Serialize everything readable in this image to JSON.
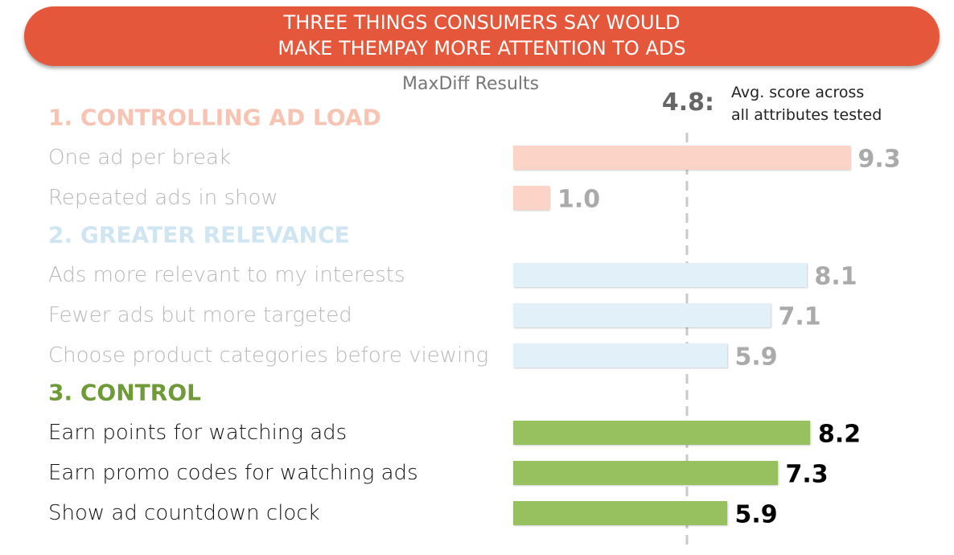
{
  "chart_data": {
    "type": "bar",
    "orientation": "horizontal",
    "title": [
      "THREE THINGS CONSUMERS SAY WOULD",
      "MAKE THEMPAY MORE ATTENTION TO ADS"
    ],
    "title_color": "#e5573a",
    "subtitle": "MaxDiff Results",
    "reference": {
      "value": 4.8,
      "label": "4.8:",
      "note": [
        "Avg. score across",
        "all attributes tested"
      ]
    },
    "groups": [
      {
        "name": "1. CONTROLLING AD LOAD",
        "name_color": "#f7c3b3",
        "color": "#fcd3c7",
        "text_color": "#b8b8b8",
        "categories": [
          "One ad per break",
          "Repeated ads in show"
        ],
        "values": [
          9.3,
          1.0
        ],
        "value_labels": [
          "9.3",
          "1.0"
        ]
      },
      {
        "name": "2. GREATER RELEVANCE",
        "name_color": "#cfe5f2",
        "color": "#e2f0f9",
        "text_color": "#b8b8b8",
        "categories": [
          "Ads more relevant to my interests",
          "Fewer ads but more targeted",
          "Choose product categories before viewing"
        ],
        "values": [
          8.1,
          7.1,
          5.9
        ],
        "value_labels": [
          "8.1",
          "7.1",
          "5.9"
        ]
      },
      {
        "name": "3.  CONTROL",
        "name_color": "#6e9a38",
        "color": "#97c15f",
        "text_color": "#111111",
        "categories": [
          "Earn points for watching ads",
          "Earn promo codes for watching ads",
          "Show ad countdown clock"
        ],
        "values": [
          8.2,
          7.3,
          5.9
        ],
        "value_labels": [
          "8.2",
          "7.3",
          "5.9"
        ]
      }
    ]
  }
}
